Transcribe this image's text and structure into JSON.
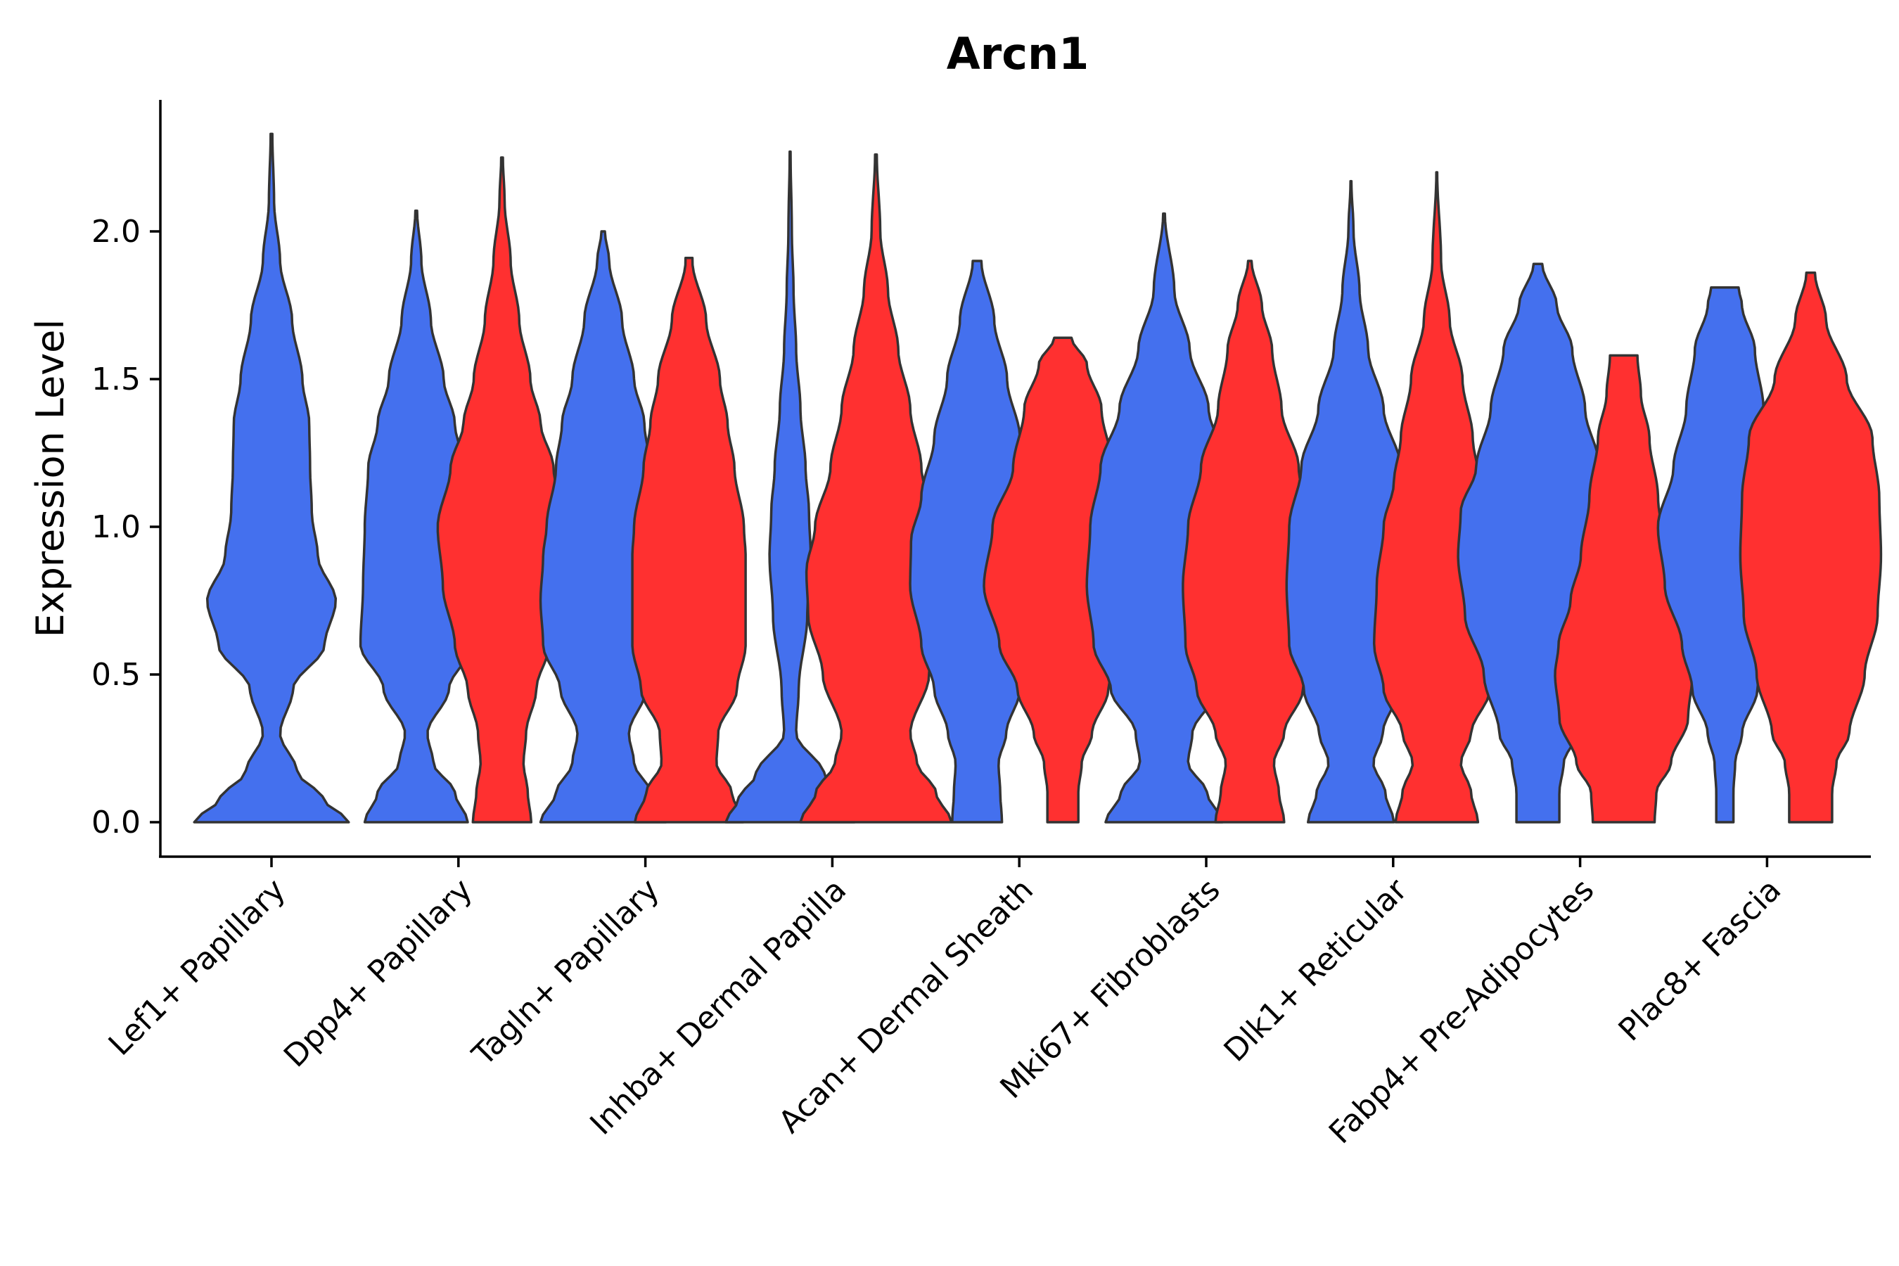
{
  "chart_data": {
    "type": "violin",
    "title": "Arcn1",
    "xlabel": "",
    "ylabel": "Expression Level",
    "ylim": [
      -0.12,
      2.45
    ],
    "yticks": [
      "0.0",
      "0.5",
      "1.0",
      "1.5",
      "2.0"
    ],
    "ytick_values": [
      0,
      0.5,
      1.0,
      1.5,
      2.0
    ],
    "grid": false,
    "legend": "none",
    "series_colors": {
      "blue": "#4470EE",
      "red": "#FF3030"
    },
    "categories": [
      "Lef1+ Papillary",
      "Dpp4+ Papillary",
      "Tagln+ Papillary",
      "Inhba+ Dermal Papilla",
      "Acan+ Dermal Sheath",
      "Mki67+ Fibroblasts",
      "Dlk1+ Reticular",
      "Fabp4+ Pre-Adipocytes",
      "Plac8+ Fascia"
    ],
    "violins": [
      {
        "category": "Lef1+ Papillary",
        "group": "blue",
        "max": 2.33,
        "profile": [
          [
            0,
            0.9
          ],
          [
            0.08,
            0.6
          ],
          [
            0.17,
            0.3
          ],
          [
            0.3,
            0.1
          ],
          [
            0.45,
            0.25
          ],
          [
            0.6,
            0.62
          ],
          [
            0.75,
            0.75
          ],
          [
            0.9,
            0.54
          ],
          [
            1.05,
            0.47
          ],
          [
            1.2,
            0.45
          ],
          [
            1.35,
            0.44
          ],
          [
            1.5,
            0.36
          ],
          [
            1.7,
            0.24
          ],
          [
            1.9,
            0.1
          ],
          [
            2.1,
            0.03
          ],
          [
            2.33,
            0.01
          ]
        ]
      },
      {
        "category": "Dpp4+ Papillary",
        "group": "blue",
        "max": 2.07,
        "profile": [
          [
            0,
            0.6
          ],
          [
            0.1,
            0.45
          ],
          [
            0.2,
            0.2
          ],
          [
            0.3,
            0.13
          ],
          [
            0.45,
            0.38
          ],
          [
            0.6,
            0.65
          ],
          [
            0.8,
            0.62
          ],
          [
            1.0,
            0.6
          ],
          [
            1.2,
            0.56
          ],
          [
            1.35,
            0.45
          ],
          [
            1.5,
            0.32
          ],
          [
            1.7,
            0.17
          ],
          [
            1.9,
            0.06
          ],
          [
            2.07,
            0.01
          ]
        ]
      },
      {
        "category": "Dpp4+ Papillary",
        "group": "red",
        "max": 2.25,
        "profile": [
          [
            0,
            0.34
          ],
          [
            0.1,
            0.3
          ],
          [
            0.2,
            0.25
          ],
          [
            0.3,
            0.28
          ],
          [
            0.45,
            0.4
          ],
          [
            0.6,
            0.55
          ],
          [
            0.8,
            0.69
          ],
          [
            1.0,
            0.75
          ],
          [
            1.2,
            0.6
          ],
          [
            1.35,
            0.45
          ],
          [
            1.5,
            0.33
          ],
          [
            1.7,
            0.2
          ],
          [
            1.9,
            0.1
          ],
          [
            2.1,
            0.03
          ],
          [
            2.25,
            0.01
          ]
        ]
      },
      {
        "category": "Tagln+ Papillary",
        "group": "blue",
        "max": 2.0,
        "profile": [
          [
            0,
            0.73
          ],
          [
            0.1,
            0.55
          ],
          [
            0.2,
            0.36
          ],
          [
            0.3,
            0.3
          ],
          [
            0.45,
            0.5
          ],
          [
            0.6,
            0.7
          ],
          [
            0.75,
            0.73
          ],
          [
            0.9,
            0.7
          ],
          [
            1.0,
            0.66
          ],
          [
            1.2,
            0.55
          ],
          [
            1.35,
            0.48
          ],
          [
            1.5,
            0.36
          ],
          [
            1.7,
            0.22
          ],
          [
            1.9,
            0.07
          ],
          [
            2.0,
            0.02
          ]
        ]
      },
      {
        "category": "Tagln+ Papillary",
        "group": "red",
        "max": 1.91,
        "profile": [
          [
            0,
            0.63
          ],
          [
            0.1,
            0.5
          ],
          [
            0.2,
            0.32
          ],
          [
            0.3,
            0.34
          ],
          [
            0.45,
            0.56
          ],
          [
            0.6,
            0.66
          ],
          [
            0.75,
            0.66
          ],
          [
            0.9,
            0.66
          ],
          [
            1.0,
            0.64
          ],
          [
            1.2,
            0.53
          ],
          [
            1.35,
            0.45
          ],
          [
            1.5,
            0.36
          ],
          [
            1.7,
            0.2
          ],
          [
            1.9,
            0.04
          ]
        ]
      },
      {
        "category": "Inhba+ Dermal Papilla",
        "group": "blue",
        "max": 2.27,
        "profile": [
          [
            0,
            0.75
          ],
          [
            0.08,
            0.6
          ],
          [
            0.16,
            0.4
          ],
          [
            0.3,
            0.07
          ],
          [
            0.45,
            0.1
          ],
          [
            0.7,
            0.2
          ],
          [
            0.9,
            0.24
          ],
          [
            1.05,
            0.22
          ],
          [
            1.2,
            0.18
          ],
          [
            1.4,
            0.12
          ],
          [
            1.6,
            0.07
          ],
          [
            1.8,
            0.04
          ],
          [
            2.0,
            0.02
          ],
          [
            2.27,
            0.005
          ]
        ]
      },
      {
        "category": "Inhba+ Dermal Papilla",
        "group": "red",
        "max": 2.26,
        "profile": [
          [
            0,
            0.88
          ],
          [
            0.1,
            0.7
          ],
          [
            0.2,
            0.48
          ],
          [
            0.3,
            0.4
          ],
          [
            0.5,
            0.62
          ],
          [
            0.7,
            0.79
          ],
          [
            0.85,
            0.81
          ],
          [
            1.0,
            0.71
          ],
          [
            1.2,
            0.53
          ],
          [
            1.4,
            0.4
          ],
          [
            1.6,
            0.26
          ],
          [
            1.8,
            0.14
          ],
          [
            2.0,
            0.05
          ],
          [
            2.26,
            0.01
          ]
        ]
      },
      {
        "category": "Acan+ Dermal Sheath",
        "group": "blue",
        "max": 1.9,
        "profile": [
          [
            0,
            0.29
          ],
          [
            0.1,
            0.27
          ],
          [
            0.2,
            0.25
          ],
          [
            0.3,
            0.34
          ],
          [
            0.45,
            0.5
          ],
          [
            0.6,
            0.65
          ],
          [
            0.8,
            0.78
          ],
          [
            0.95,
            0.77
          ],
          [
            1.1,
            0.65
          ],
          [
            1.3,
            0.5
          ],
          [
            1.5,
            0.35
          ],
          [
            1.7,
            0.2
          ],
          [
            1.9,
            0.05
          ]
        ]
      },
      {
        "category": "Acan+ Dermal Sheath",
        "group": "red",
        "max": 1.64,
        "profile": [
          [
            0,
            0.18
          ],
          [
            0.1,
            0.18
          ],
          [
            0.2,
            0.22
          ],
          [
            0.3,
            0.34
          ],
          [
            0.45,
            0.53
          ],
          [
            0.6,
            0.74
          ],
          [
            0.8,
            0.92
          ],
          [
            1.0,
            0.82
          ],
          [
            1.2,
            0.58
          ],
          [
            1.4,
            0.45
          ],
          [
            1.55,
            0.28
          ],
          [
            1.64,
            0.1
          ]
        ]
      },
      {
        "category": "Mki67+ Fibroblasts",
        "group": "blue",
        "max": 2.06,
        "profile": [
          [
            0,
            0.68
          ],
          [
            0.1,
            0.5
          ],
          [
            0.2,
            0.28
          ],
          [
            0.3,
            0.33
          ],
          [
            0.45,
            0.62
          ],
          [
            0.6,
            0.82
          ],
          [
            0.8,
            0.9
          ],
          [
            1.0,
            0.86
          ],
          [
            1.2,
            0.74
          ],
          [
            1.4,
            0.52
          ],
          [
            1.6,
            0.3
          ],
          [
            1.8,
            0.12
          ],
          [
            2.06,
            0.01
          ]
        ]
      },
      {
        "category": "Mki67+ Fibroblasts",
        "group": "red",
        "max": 1.9,
        "profile": [
          [
            0,
            0.4
          ],
          [
            0.1,
            0.34
          ],
          [
            0.2,
            0.28
          ],
          [
            0.3,
            0.4
          ],
          [
            0.45,
            0.62
          ],
          [
            0.6,
            0.75
          ],
          [
            0.8,
            0.78
          ],
          [
            1.0,
            0.72
          ],
          [
            1.2,
            0.57
          ],
          [
            1.4,
            0.37
          ],
          [
            1.6,
            0.26
          ],
          [
            1.75,
            0.14
          ],
          [
            1.9,
            0.02
          ]
        ]
      },
      {
        "category": "Dlk1+ Reticular",
        "group": "blue",
        "max": 2.17,
        "profile": [
          [
            0,
            0.5
          ],
          [
            0.1,
            0.4
          ],
          [
            0.2,
            0.26
          ],
          [
            0.3,
            0.37
          ],
          [
            0.45,
            0.55
          ],
          [
            0.6,
            0.72
          ],
          [
            0.8,
            0.75
          ],
          [
            1.0,
            0.72
          ],
          [
            1.2,
            0.58
          ],
          [
            1.4,
            0.38
          ],
          [
            1.6,
            0.2
          ],
          [
            1.8,
            0.1
          ],
          [
            2.0,
            0.03
          ],
          [
            2.17,
            0.005
          ]
        ]
      },
      {
        "category": "Dlk1+ Reticular",
        "group": "red",
        "max": 2.2,
        "profile": [
          [
            0,
            0.48
          ],
          [
            0.1,
            0.4
          ],
          [
            0.2,
            0.28
          ],
          [
            0.3,
            0.4
          ],
          [
            0.45,
            0.62
          ],
          [
            0.6,
            0.73
          ],
          [
            0.8,
            0.7
          ],
          [
            1.0,
            0.62
          ],
          [
            1.15,
            0.5
          ],
          [
            1.3,
            0.42
          ],
          [
            1.5,
            0.3
          ],
          [
            1.7,
            0.15
          ],
          [
            1.9,
            0.05
          ],
          [
            2.2,
            0.005
          ]
        ]
      },
      {
        "category": "Fabp4+ Pre-Adipocytes",
        "group": "blue",
        "max": 1.89,
        "profile": [
          [
            0,
            0.25
          ],
          [
            0.1,
            0.25
          ],
          [
            0.2,
            0.3
          ],
          [
            0.3,
            0.45
          ],
          [
            0.5,
            0.63
          ],
          [
            0.7,
            0.85
          ],
          [
            0.9,
            0.93
          ],
          [
            1.05,
            0.9
          ],
          [
            1.2,
            0.72
          ],
          [
            1.4,
            0.55
          ],
          [
            1.6,
            0.4
          ],
          [
            1.75,
            0.22
          ],
          [
            1.89,
            0.05
          ]
        ]
      },
      {
        "category": "Fabp4+ Pre-Adipocytes",
        "group": "red",
        "max": 1.58,
        "profile": [
          [
            0,
            0.36
          ],
          [
            0.1,
            0.38
          ],
          [
            0.2,
            0.55
          ],
          [
            0.35,
            0.75
          ],
          [
            0.5,
            0.8
          ],
          [
            0.6,
            0.76
          ],
          [
            0.75,
            0.62
          ],
          [
            0.9,
            0.5
          ],
          [
            1.1,
            0.4
          ],
          [
            1.3,
            0.3
          ],
          [
            1.45,
            0.2
          ],
          [
            1.58,
            0.16
          ]
        ]
      },
      {
        "category": "Plac8+ Fascia",
        "group": "blue",
        "max": 1.81,
        "profile": [
          [
            0,
            0.1
          ],
          [
            0.1,
            0.1
          ],
          [
            0.2,
            0.12
          ],
          [
            0.3,
            0.2
          ],
          [
            0.45,
            0.38
          ],
          [
            0.6,
            0.5
          ],
          [
            0.8,
            0.7
          ],
          [
            1.0,
            0.78
          ],
          [
            1.2,
            0.6
          ],
          [
            1.4,
            0.45
          ],
          [
            1.6,
            0.35
          ],
          [
            1.75,
            0.2
          ],
          [
            1.81,
            0.16
          ]
        ]
      },
      {
        "category": "Plac8+ Fascia",
        "group": "red",
        "max": 1.86,
        "profile": [
          [
            0,
            0.25
          ],
          [
            0.1,
            0.25
          ],
          [
            0.2,
            0.3
          ],
          [
            0.3,
            0.45
          ],
          [
            0.5,
            0.63
          ],
          [
            0.7,
            0.78
          ],
          [
            0.9,
            0.82
          ],
          [
            1.1,
            0.8
          ],
          [
            1.3,
            0.72
          ],
          [
            1.5,
            0.42
          ],
          [
            1.7,
            0.18
          ],
          [
            1.86,
            0.05
          ]
        ]
      }
    ]
  }
}
